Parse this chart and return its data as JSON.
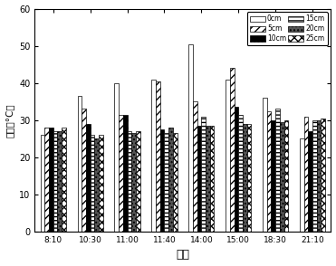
{
  "times": [
    "8:10",
    "10:30",
    "11:00",
    "11:40",
    "14:00",
    "15:00",
    "18:30",
    "21:10"
  ],
  "series": {
    "0cm": [
      26,
      36.5,
      40,
      41,
      50.5,
      41,
      36,
      25
    ],
    "5cm": [
      28,
      33,
      31.5,
      40.5,
      35,
      44,
      32.5,
      31
    ],
    "10cm": [
      28,
      29,
      31.5,
      27.5,
      28.5,
      33.5,
      30,
      27
    ],
    "15cm": [
      27,
      26,
      27,
      26.5,
      31,
      31.5,
      33,
      30
    ],
    "20cm": [
      27,
      25,
      26.5,
      28,
      28.5,
      29,
      29.5,
      30
    ],
    "25cm": [
      28,
      26,
      27,
      26.5,
      28.5,
      29,
      30,
      30.5
    ]
  },
  "labels": [
    "0cm",
    "5cm",
    "10cm",
    "15cm",
    "20cm",
    "25cm"
  ],
  "xlabel": "时间",
  "ylabel": "温度（°C）",
  "ylim": [
    0,
    60
  ],
  "yticks": [
    0,
    10,
    20,
    30,
    40,
    50,
    60
  ],
  "background_color": "#ffffff",
  "bar_edge_color": "#000000",
  "styles": [
    {
      "facecolor": "white",
      "hatch": "",
      "edgecolor": "black"
    },
    {
      "facecolor": "white",
      "hatch": "////",
      "edgecolor": "black"
    },
    {
      "facecolor": "black",
      "hatch": "....",
      "edgecolor": "black"
    },
    {
      "facecolor": "white",
      "hatch": "----",
      "edgecolor": "black"
    },
    {
      "facecolor": "#555555",
      "hatch": "....",
      "edgecolor": "black"
    },
    {
      "facecolor": "white",
      "hatch": "xxxx",
      "edgecolor": "black"
    }
  ]
}
